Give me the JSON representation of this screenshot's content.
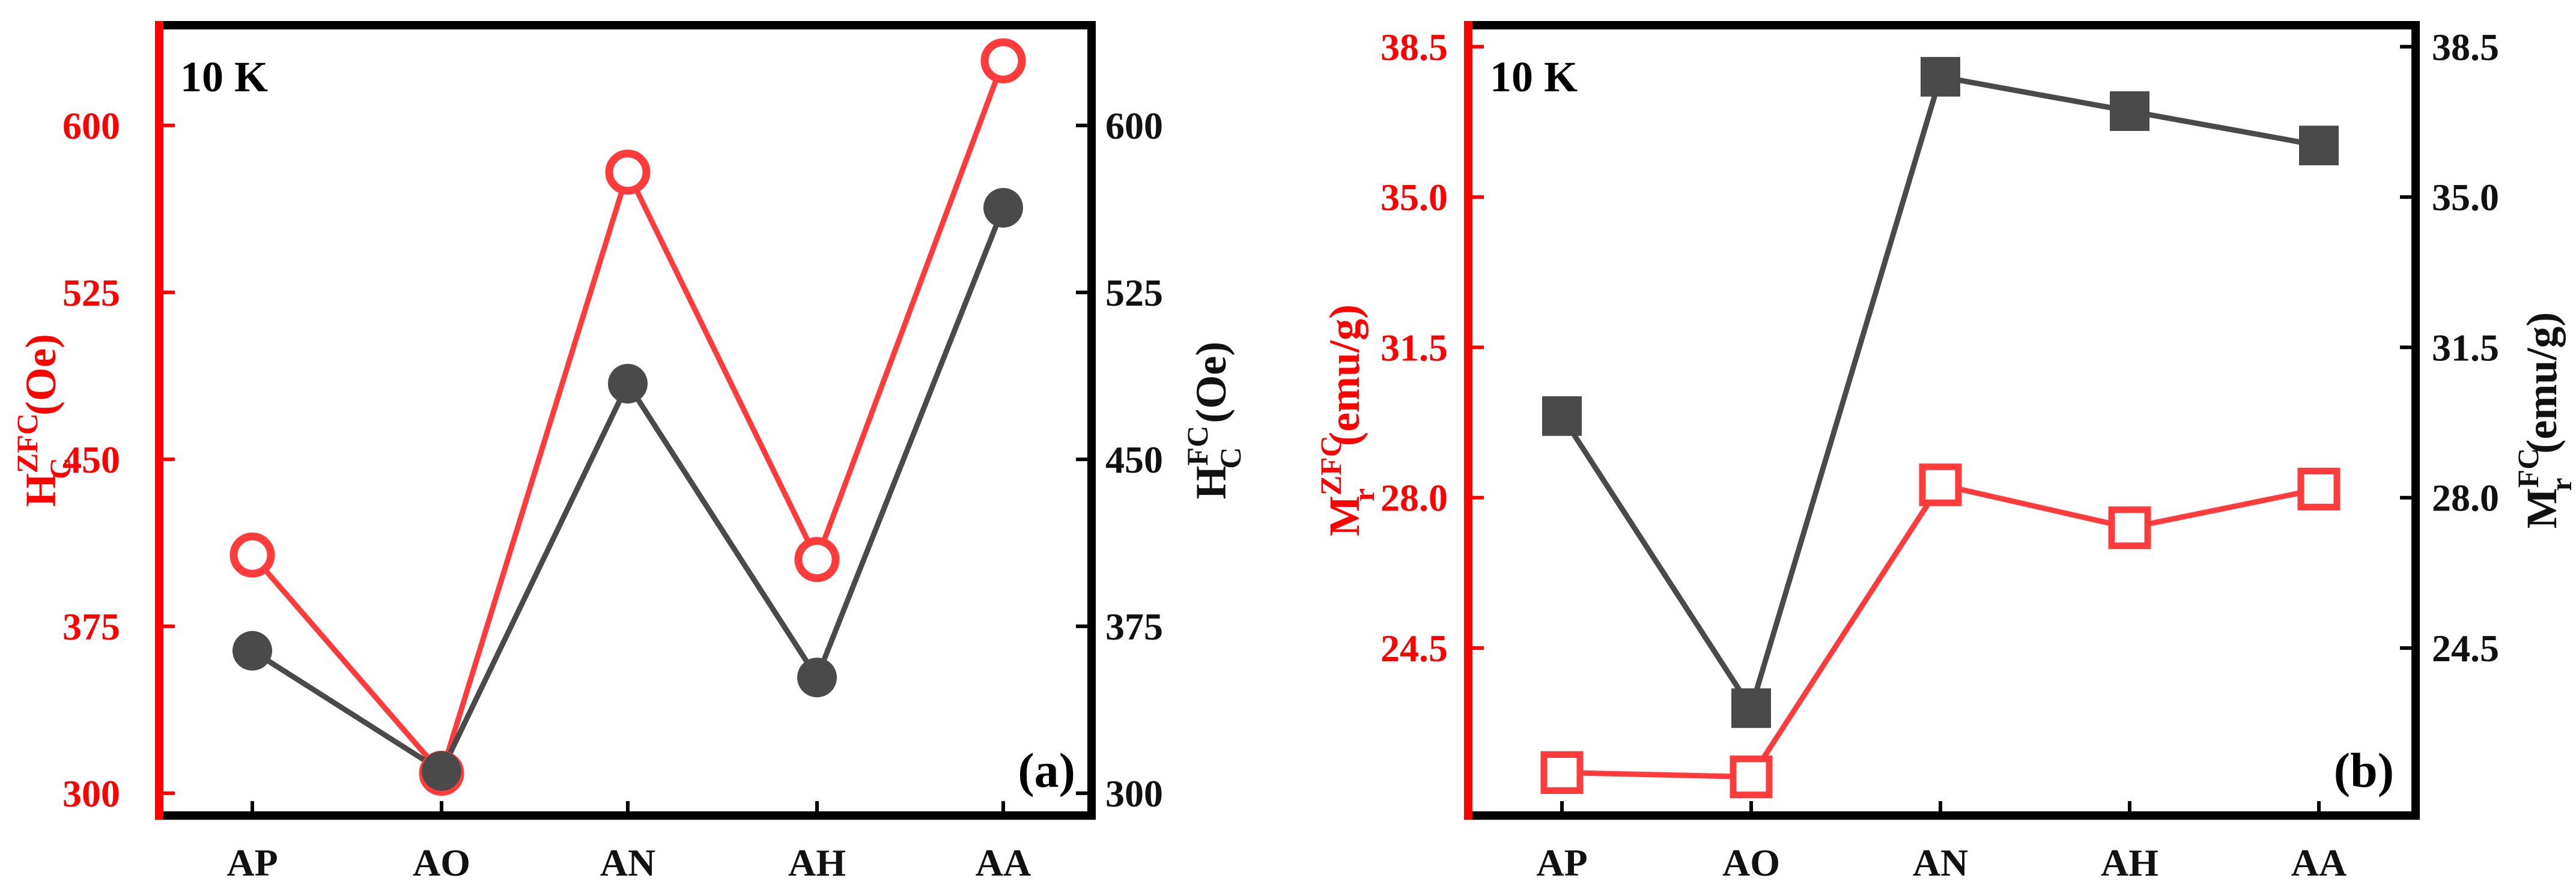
{
  "colors": {
    "zfc": "#ff3b3b",
    "fc": "#4a4a4a",
    "zfc_axis": "#ff0000",
    "frame": "#000000"
  },
  "chart_data": [
    {
      "type": "line",
      "panel_label": "(a)",
      "temperature_label": "10 K",
      "categories": [
        "AP",
        "AO",
        "AN",
        "AH",
        "AA"
      ],
      "ylabel_left": {
        "base": "H",
        "sub": "C",
        "sup": "ZFC",
        "unit": "(Oe)"
      },
      "ylabel_right": {
        "base": "H",
        "sub": "C",
        "sup": "FC",
        "unit": "(Oe)"
      },
      "ylim_left": [
        290,
        645
      ],
      "ylim_right": [
        290,
        645
      ],
      "yticks_left": [
        300,
        375,
        450,
        525,
        600
      ],
      "yticks_right": [
        300,
        375,
        450,
        525,
        600
      ],
      "ytick_labels_left": [
        "300",
        "375",
        "450",
        "525",
        "600"
      ],
      "ytick_labels_right": [
        "300",
        "375",
        "450",
        "525",
        "600"
      ],
      "series": [
        {
          "axis": "left",
          "marker": "open-circle",
          "values": [
            407,
            309,
            579,
            405,
            629
          ]
        },
        {
          "axis": "right",
          "marker": "filled-circle",
          "values": [
            364,
            310,
            484,
            352,
            563
          ]
        }
      ]
    },
    {
      "type": "line",
      "panel_label": "(b)",
      "temperature_label": "10 K",
      "categories": [
        "AP",
        "AO",
        "AN",
        "AH",
        "AA"
      ],
      "ylabel_left": {
        "base": "M",
        "sub": "r",
        "sup": "ZFC",
        "unit": "(emu/g)"
      },
      "ylabel_right": {
        "base": "M",
        "sub": "r",
        "sup": "FC",
        "unit": "(emu/g)"
      },
      "ylim_left": [
        20.6,
        39.0
      ],
      "ylim_right": [
        20.6,
        39.0
      ],
      "yticks_left": [
        24.5,
        28.0,
        31.5,
        35.0,
        38.5
      ],
      "yticks_right": [
        24.5,
        28.0,
        31.5,
        35.0,
        38.5
      ],
      "ytick_labels_left": [
        "24.5",
        "28.0",
        "31.5",
        "35.0",
        "38.5"
      ],
      "ytick_labels_right": [
        "24.5",
        "28.0",
        "31.5",
        "35.0",
        "38.5"
      ],
      "series": [
        {
          "axis": "left",
          "marker": "open-square",
          "values": [
            21.6,
            21.5,
            28.3,
            27.3,
            28.2
          ]
        },
        {
          "axis": "right",
          "marker": "filled-square",
          "values": [
            29.9,
            23.1,
            37.8,
            37.0,
            36.2
          ]
        }
      ]
    }
  ]
}
